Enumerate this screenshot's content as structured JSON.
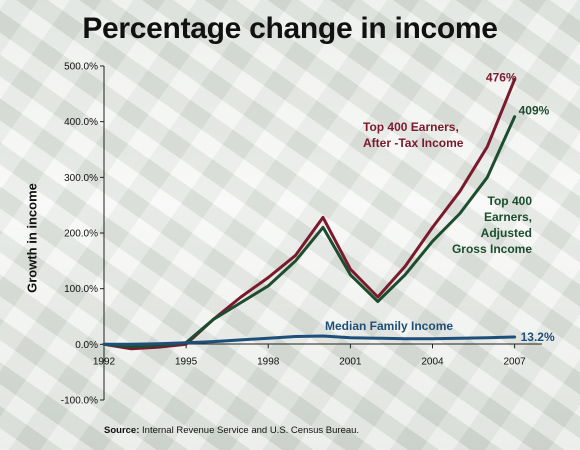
{
  "source": {
    "label": "Source:",
    "text": "Internal Revenue Service and U.S. Census Bureau."
  },
  "colors": {
    "after_tax": "#7a1a2c",
    "agi": "#1b4d2e",
    "median": "#1d4f7a"
  },
  "chart_data": {
    "type": "line",
    "title": "Percentage change in income",
    "xlabel": "",
    "ylabel": "Growth in income",
    "xlim": [
      1992,
      2008
    ],
    "ylim": [
      -100,
      500
    ],
    "x_ticks": [
      "1992",
      "1995",
      "1998",
      "2001",
      "2004",
      "2007"
    ],
    "y_ticks": [
      "-100.0%",
      "0.0%",
      "100.0%",
      "200.0%",
      "300.0%",
      "400.0%",
      "500.0%"
    ],
    "grid": false,
    "series": [
      {
        "name": "Top 400 Earners, After -Tax Income",
        "label_lines": [
          "Top 400 Earners,",
          "After -Tax Income"
        ],
        "end_label": "476%",
        "x": [
          1992,
          1993,
          1994,
          1995,
          1996,
          1997,
          1998,
          1999,
          2000,
          2001,
          2002,
          2003,
          2004,
          2005,
          2006,
          2007
        ],
        "values": [
          0,
          -8,
          -5,
          0,
          45,
          85,
          120,
          160,
          228,
          135,
          85,
          140,
          210,
          275,
          355,
          476
        ]
      },
      {
        "name": "Top 400 Earners, Adjusted Gross Income",
        "label_lines": [
          "Top 400",
          "Earners,",
          "Adjusted",
          "Gross Income"
        ],
        "end_label": "409%",
        "x": [
          1992,
          1993,
          1994,
          1995,
          1996,
          1997,
          1998,
          1999,
          2000,
          2001,
          2002,
          2003,
          2004,
          2005,
          2006,
          2007
        ],
        "values": [
          0,
          -4,
          -2,
          3,
          45,
          75,
          105,
          150,
          210,
          125,
          77,
          125,
          185,
          235,
          300,
          409
        ]
      },
      {
        "name": "Median Family Income",
        "label_lines": [
          "Median Family Income"
        ],
        "end_label": "13.2%",
        "x": [
          1992,
          1993,
          1994,
          1995,
          1996,
          1997,
          1998,
          1999,
          2000,
          2001,
          2002,
          2003,
          2004,
          2005,
          2006,
          2007
        ],
        "values": [
          0,
          0,
          1,
          3,
          5,
          8,
          11,
          14,
          15,
          12,
          11,
          10,
          10,
          11,
          12,
          13.2
        ]
      }
    ]
  }
}
